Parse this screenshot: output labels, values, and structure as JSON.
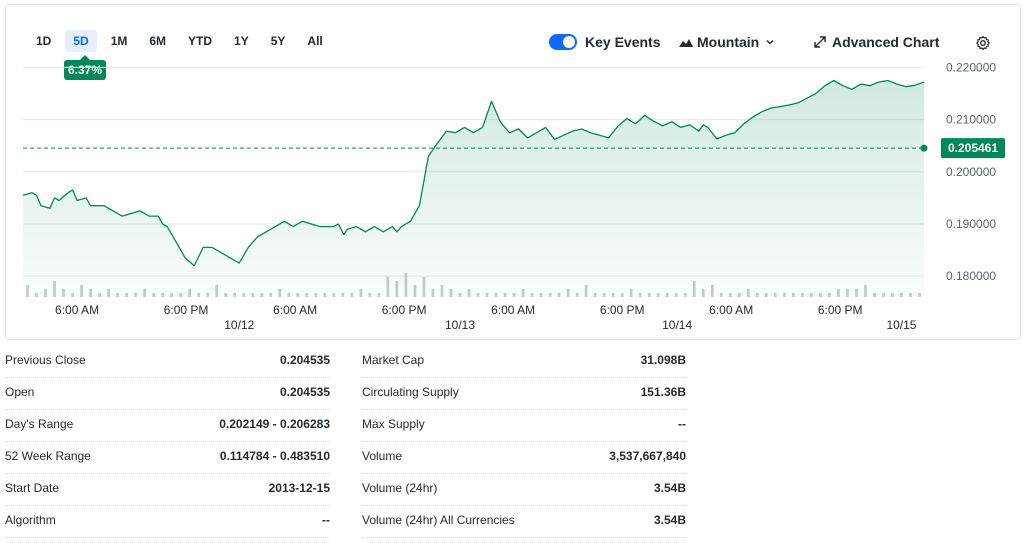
{
  "ranges": [
    "1D",
    "5D",
    "1M",
    "6M",
    "YTD",
    "1Y",
    "5Y",
    "All"
  ],
  "active_range": "5D",
  "change_badge": "6.37%",
  "key_events_label": "Key Events",
  "chart_style_label": "Mountain",
  "advanced_chart_label": "Advanced Chart",
  "colors": {
    "line": "#00875a",
    "badge": "#00875a",
    "accent": "#0f69ff"
  },
  "chart_data": {
    "type": "area",
    "title": "",
    "ylim": [
      0.176,
      0.222
    ],
    "yticks": [
      0.22,
      0.21,
      0.2,
      0.19,
      0.18
    ],
    "ytick_labels": [
      "0.220000",
      "0.210000",
      "0.200000",
      "0.190000",
      "0.180000"
    ],
    "y_axis_position": "right",
    "grid": true,
    "reference_line": 0.204535,
    "last_price_label": "0.205461",
    "x_domain": [
      0,
      100
    ],
    "xticks": [
      {
        "x": 6,
        "label": "6:00 AM",
        "date": ""
      },
      {
        "x": 18.1,
        "label": "6:00 PM",
        "date": "10/12"
      },
      {
        "x": 30.2,
        "label": "6:00 AM",
        "date": ""
      },
      {
        "x": 42.3,
        "label": "6:00 PM",
        "date": "10/13"
      },
      {
        "x": 54.4,
        "label": "6:00 AM",
        "date": ""
      },
      {
        "x": 66.5,
        "label": "6:00 PM",
        "date": "10/14"
      },
      {
        "x": 78.6,
        "label": "6:00 AM",
        "date": ""
      },
      {
        "x": 90.7,
        "label": "6:00 PM",
        "date": "10/15"
      }
    ],
    "date_ticks": [
      {
        "x": 24,
        "label": "10/12"
      },
      {
        "x": 48.5,
        "label": "10/13"
      },
      {
        "x": 72.6,
        "label": "10/14"
      },
      {
        "x": 97.5,
        "label": "10/15"
      }
    ],
    "series": [
      {
        "x": [
          0,
          1,
          1.5,
          2,
          3,
          3.5,
          4,
          5,
          5.5,
          6,
          7,
          7.5,
          8,
          9,
          10,
          11,
          12,
          13,
          14,
          15,
          15.5,
          16,
          17,
          17.5,
          18,
          19,
          20,
          21,
          22,
          23,
          24,
          25,
          26,
          27,
          28,
          29,
          30,
          31,
          32,
          33,
          34,
          34.5,
          35,
          35.3,
          35.6,
          36,
          37,
          38,
          39,
          40,
          41,
          41.5,
          42,
          43,
          44,
          45,
          46,
          47,
          48,
          49,
          50,
          51,
          52,
          53,
          54,
          55,
          56,
          57,
          58,
          59,
          60,
          61,
          62,
          63,
          64,
          65,
          66,
          67,
          68,
          69,
          70,
          71,
          72,
          73,
          74,
          75,
          75.5,
          76,
          77,
          78,
          79,
          80,
          81,
          82,
          83,
          84,
          85,
          86,
          87,
          88,
          89,
          90,
          91,
          92,
          93,
          94,
          95,
          96,
          97,
          98,
          99,
          100
        ],
        "values": [
          0.1955,
          0.196,
          0.1955,
          0.1935,
          0.193,
          0.195,
          0.1945,
          0.196,
          0.1965,
          0.1945,
          0.195,
          0.1935,
          0.1935,
          0.1935,
          0.1925,
          0.1915,
          0.192,
          0.1925,
          0.1915,
          0.1915,
          0.19,
          0.1895,
          0.1865,
          0.185,
          0.1835,
          0.182,
          0.1855,
          0.1855,
          0.1845,
          0.1835,
          0.1825,
          0.1855,
          0.1875,
          0.1885,
          0.1895,
          0.1905,
          0.1895,
          0.1905,
          0.19,
          0.1895,
          0.1895,
          0.1895,
          0.19,
          0.189,
          0.188,
          0.189,
          0.1895,
          0.1885,
          0.1895,
          0.1885,
          0.1895,
          0.1885,
          0.1895,
          0.1905,
          0.1935,
          0.203,
          0.2055,
          0.2078,
          0.2075,
          0.2085,
          0.2075,
          0.2085,
          0.2135,
          0.2095,
          0.2075,
          0.2082,
          0.2065,
          0.2075,
          0.2085,
          0.2062,
          0.207,
          0.2078,
          0.2082,
          0.2075,
          0.207,
          0.2065,
          0.2087,
          0.2102,
          0.2092,
          0.2108,
          0.2097,
          0.2088,
          0.2096,
          0.2085,
          0.209,
          0.2078,
          0.209,
          0.2085,
          0.2063,
          0.207,
          0.2075,
          0.2092,
          0.2105,
          0.2115,
          0.2122,
          0.2125,
          0.2128,
          0.2132,
          0.2141,
          0.215,
          0.2165,
          0.2175,
          0.2165,
          0.2158,
          0.2168,
          0.2165,
          0.2172,
          0.2175,
          0.2168,
          0.2163,
          0.2166,
          0.2172
        ]
      }
    ],
    "volume": {
      "note": "small volume bars along chart bottom",
      "bars": [
        3,
        1,
        2,
        4,
        2,
        1,
        3,
        2,
        1,
        2,
        1,
        1,
        1,
        2,
        1,
        1,
        1,
        1,
        2,
        1,
        1,
        3,
        1,
        1,
        1,
        1,
        1,
        1,
        2,
        1,
        1,
        1,
        1,
        1,
        1,
        1,
        1,
        2,
        1,
        1,
        5,
        4,
        6,
        3,
        5,
        2,
        3,
        2,
        1,
        2,
        1,
        1,
        1,
        1,
        1,
        2,
        1,
        1,
        1,
        1,
        2,
        1,
        3,
        1,
        1,
        1,
        1,
        2,
        1,
        1,
        1,
        1,
        1,
        1,
        4,
        2,
        3,
        1,
        1,
        1,
        2,
        1,
        1,
        1,
        1,
        1,
        1,
        1,
        1,
        1,
        2,
        2,
        2,
        3,
        1,
        1,
        1,
        1,
        1,
        1
      ]
    }
  },
  "stats_left": [
    {
      "label": "Previous Close",
      "value": "0.204535"
    },
    {
      "label": "Open",
      "value": "0.204535"
    },
    {
      "label": "Day's Range",
      "value": "0.202149 - 0.206283"
    },
    {
      "label": "52 Week Range",
      "value": "0.114784 - 0.483510"
    },
    {
      "label": "Start Date",
      "value": "2013-12-15"
    },
    {
      "label": "Algorithm",
      "value": "--"
    }
  ],
  "stats_right": [
    {
      "label": "Market Cap",
      "value": "31.098B"
    },
    {
      "label": "Circulating Supply",
      "value": "151.36B"
    },
    {
      "label": "Max Supply",
      "value": "--"
    },
    {
      "label": "Volume",
      "value": "3,537,667,840"
    },
    {
      "label": "Volume (24hr)",
      "value": "3.54B"
    },
    {
      "label": "Volume (24hr) All Currencies",
      "value": "3.54B"
    }
  ]
}
